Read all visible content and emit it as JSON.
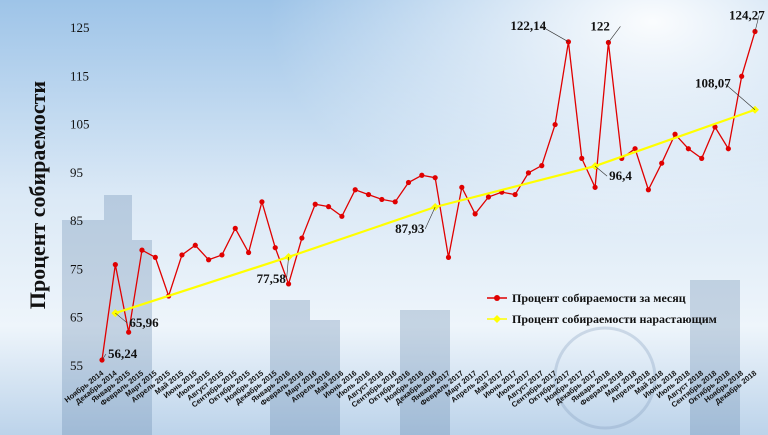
{
  "chart_data": {
    "type": "line",
    "title": "",
    "ylabel": "Процент собираемости",
    "xlabel": "",
    "ylim": [
      55,
      127
    ],
    "yticks": [
      55,
      65,
      75,
      85,
      95,
      105,
      115,
      125
    ],
    "grid": false,
    "legend_position": "right-middle",
    "categories": [
      "Ноябрь 2014",
      "Декабрь 2014",
      "Январь 2015",
      "Февраль 2015",
      "Март 2015",
      "Апрель 2015",
      "Май 2015",
      "Июнь 2015",
      "Июль 2015",
      "Август 2015",
      "Сентябрь 2015",
      "Октябрь 2015",
      "Ноябрь 2015",
      "Декабрь 2015",
      "Январь 2016",
      "Февраль 2016",
      "Март 2016",
      "Апрель 2016",
      "Май 2016",
      "Июнь 2016",
      "Июль 2016",
      "Август 2016",
      "Сентябрь 2016",
      "Октябрь 2016",
      "Ноябрь 2016",
      "Декабрь 2016",
      "Январь 2017",
      "Февраль 2017",
      "Март 2017",
      "Апрель 2017",
      "Май 2017",
      "Июнь 2017",
      "Июль 2017",
      "Август 2017",
      "Сентябрь 2017",
      "Октябрь 2017",
      "Ноябрь 2017",
      "Декабрь 2017",
      "Январь 2018",
      "Февраль 2018",
      "Март 2018",
      "Апрель 2018",
      "Май 2018",
      "Июнь 2018",
      "Июль 2018",
      "Август 2018",
      "Сентябрь 2018",
      "Октябрь 2018",
      "Ноябрь 2018",
      "Декабрь 2018"
    ],
    "series": [
      {
        "name": "Процент собираемости за месяц",
        "color": "#e00000",
        "values": [
          56.24,
          76,
          62,
          79,
          77.5,
          69.5,
          78,
          80,
          77,
          78,
          83.5,
          78.5,
          89,
          79.5,
          72,
          81.5,
          88.5,
          88,
          86,
          91.5,
          90.5,
          89.5,
          89,
          93,
          94.5,
          94,
          77.5,
          92,
          86.5,
          90,
          91,
          90.5,
          95,
          96.5,
          105,
          122.14,
          98,
          92,
          122,
          98,
          100,
          91.5,
          97,
          103,
          100,
          98,
          104.5,
          100,
          115,
          124.27
        ]
      },
      {
        "name": "Процент собираемости нарастающим",
        "color": "#ffff00",
        "values": [
          null,
          65.96,
          null,
          null,
          null,
          null,
          null,
          null,
          null,
          null,
          null,
          null,
          null,
          null,
          77.58,
          null,
          null,
          null,
          null,
          null,
          null,
          null,
          null,
          null,
          null,
          87.93,
          null,
          null,
          null,
          null,
          null,
          null,
          null,
          null,
          null,
          null,
          null,
          96.4,
          null,
          null,
          null,
          null,
          null,
          null,
          null,
          null,
          null,
          null,
          null,
          108.07
        ]
      }
    ],
    "annotations": [
      {
        "text": "56,24",
        "series": 0,
        "index": 0
      },
      {
        "text": "65,96",
        "series": 1,
        "index": 1
      },
      {
        "text": "77,58",
        "series": 1,
        "index": 14
      },
      {
        "text": "87,93",
        "series": 1,
        "index": 25
      },
      {
        "text": "96,4",
        "series": 1,
        "index": 37
      },
      {
        "text": "122,14",
        "series": 0,
        "index": 35
      },
      {
        "text": "122",
        "series": 0,
        "index": 38
      },
      {
        "text": "124,27",
        "series": 0,
        "index": 49
      },
      {
        "text": "108,07",
        "series": 1,
        "index": 49
      }
    ]
  }
}
